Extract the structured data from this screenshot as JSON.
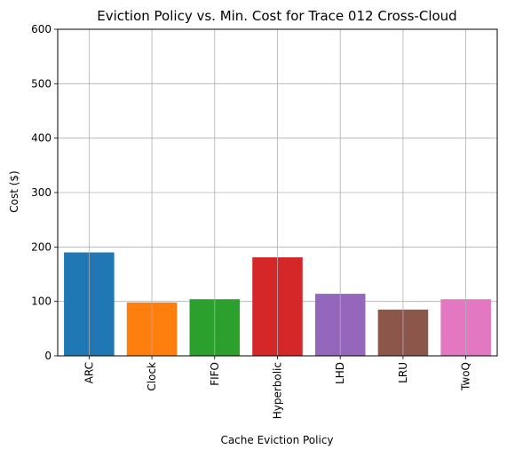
{
  "chart_data": {
    "type": "bar",
    "title": "Eviction Policy vs. Min. Cost for Trace 012 Cross-Cloud",
    "xlabel": "Cache Eviction Policy",
    "ylabel": "Cost ($)",
    "categories": [
      "ARC",
      "Clock",
      "FIFO",
      "Hyperbolic",
      "LHD",
      "LRU",
      "TwoQ"
    ],
    "values": [
      190,
      98,
      104,
      181,
      114,
      85,
      104
    ],
    "colors": [
      "#1f77b4",
      "#ff7f0e",
      "#2ca02c",
      "#d62728",
      "#9467bd",
      "#8c564b",
      "#e377c2"
    ],
    "ylim": [
      0,
      600
    ],
    "yticks": [
      0,
      100,
      200,
      300,
      400,
      500,
      600
    ],
    "grid": true,
    "x_tick_rotation": "vertical"
  }
}
